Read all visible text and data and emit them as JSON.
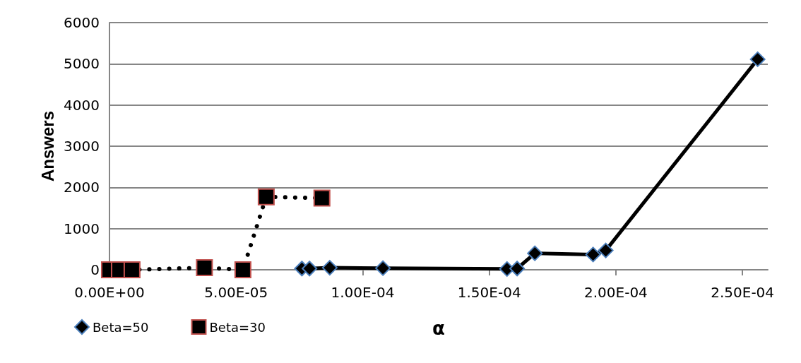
{
  "chart_data": {
    "type": "line",
    "xlabel": "α",
    "ylabel": "Answers",
    "xlim": [
      0,
      0.00026
    ],
    "xticks": [
      {
        "value": 0,
        "label": "0.00E+00"
      },
      {
        "value": 5e-05,
        "label": "5.00E-05"
      },
      {
        "value": 0.0001,
        "label": "1.00E-04"
      },
      {
        "value": 0.00015,
        "label": "1.50E-04"
      },
      {
        "value": 0.0002,
        "label": "2.00E-04"
      },
      {
        "value": 0.00025,
        "label": "2.50E-04"
      }
    ],
    "ylim": [
      0,
      6000
    ],
    "yticks": [
      0,
      1000,
      2000,
      3000,
      4000,
      5000,
      6000
    ],
    "grid": "y",
    "legend": "bottom left",
    "series": [
      {
        "name": "Beta=50",
        "color": "#000000",
        "marker": "diamond",
        "line_style": "solid",
        "x": [
          7.6e-05,
          7.9e-05,
          8.7e-05,
          0.000108,
          0.000157,
          0.000161,
          0.000168,
          0.000191,
          0.000196,
          0.000256
        ],
        "values": [
          30,
          30,
          50,
          40,
          20,
          30,
          400,
          370,
          470,
          5110
        ]
      },
      {
        "name": "Beta=30",
        "color": "#000000",
        "marker": "square",
        "line_style": "dotted",
        "x": [
          0,
          3.9e-06,
          8.9e-06,
          3.75e-05,
          5.27e-05,
          6.19e-05,
          8.39e-05
        ],
        "values": [
          0,
          0,
          0,
          50,
          0,
          1770,
          1740
        ]
      }
    ]
  }
}
